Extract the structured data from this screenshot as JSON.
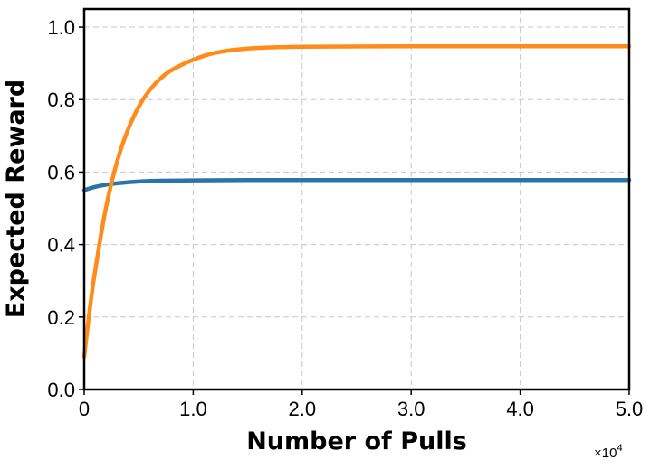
{
  "chart_data": {
    "type": "line",
    "title": "",
    "xlabel": "Number of Pulls",
    "ylabel": "Expected Reward",
    "x_multiplier": "×10",
    "x_multiplier_exp": "4",
    "xlim": [
      0,
      5.0
    ],
    "ylim": [
      0,
      1.05
    ],
    "x_ticks": [
      0,
      1.0,
      2.0,
      3.0,
      4.0,
      5.0
    ],
    "x_tick_labels": [
      "0",
      "1.0",
      "2.0",
      "3.0",
      "4.0",
      "5.0"
    ],
    "y_ticks": [
      0,
      0.2,
      0.4,
      0.6,
      0.8,
      1.0
    ],
    "y_tick_labels": [
      "0.0",
      "0.2",
      "0.4",
      "0.6",
      "0.8",
      "1.0"
    ],
    "grid": true,
    "legend": "none",
    "series": [
      {
        "color": "#2c73a8",
        "x": [
          0,
          0.1,
          0.2,
          0.3,
          0.5,
          0.7,
          1.0,
          1.5,
          2.0,
          3.0,
          4.0,
          5.0
        ],
        "y": [
          0.55,
          0.559,
          0.565,
          0.569,
          0.574,
          0.576,
          0.577,
          0.578,
          0.578,
          0.578,
          0.578,
          0.578
        ]
      },
      {
        "color": "#ff8c1a",
        "x": [
          0,
          0.05,
          0.1,
          0.2,
          0.3,
          0.4,
          0.5,
          0.6,
          0.7,
          0.8,
          1.0,
          1.2,
          1.5,
          2.0,
          3.0,
          4.0,
          5.0
        ],
        "y": [
          0.09,
          0.219,
          0.327,
          0.502,
          0.627,
          0.716,
          0.78,
          0.826,
          0.858,
          0.881,
          0.91,
          0.929,
          0.941,
          0.946,
          0.947,
          0.947,
          0.947
        ]
      }
    ]
  }
}
